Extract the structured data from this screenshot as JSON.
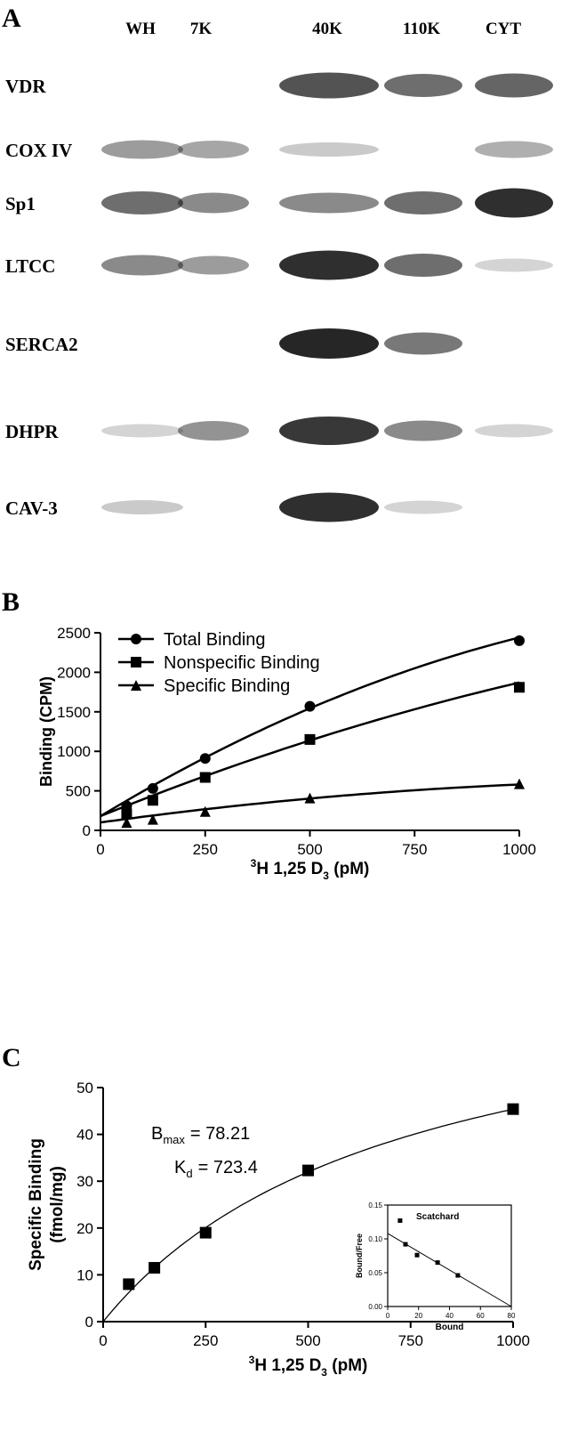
{
  "panel_labels": {
    "a": "A",
    "b": "B",
    "c": "C"
  },
  "blot": {
    "columns": [
      "WH",
      "7K",
      "40K",
      "110K",
      "CYT"
    ],
    "rows": [
      {
        "label": "VDR",
        "intensity": [
          0.0,
          0.0,
          0.75,
          0.6,
          0.65
        ]
      },
      {
        "label": "COX IV",
        "intensity": [
          0.35,
          0.3,
          0.1,
          0.0,
          0.25
        ]
      },
      {
        "label": "Sp1",
        "intensity": [
          0.6,
          0.45,
          0.45,
          0.6,
          0.95
        ]
      },
      {
        "label": "LTCC",
        "intensity": [
          0.45,
          0.35,
          0.95,
          0.6,
          0.05
        ]
      },
      {
        "label": "SERCA2",
        "intensity": [
          0.0,
          0.0,
          1.0,
          0.55,
          0.0
        ]
      },
      {
        "label": "DHPR",
        "intensity": [
          0.05,
          0.4,
          0.9,
          0.45,
          0.05
        ]
      },
      {
        "label": "CAV-3",
        "intensity": [
          0.1,
          0.0,
          0.95,
          0.05,
          0.0
        ]
      }
    ],
    "band_color": "#1a1a1a"
  },
  "chart_data": [
    {
      "type": "scatter",
      "title": "",
      "xlabel_sup": "3",
      "xlabel_main": "H 1,25 D",
      "xlabel_sub": "3",
      "xlabel_tail": " (pM)",
      "ylabel": "Binding (CPM)",
      "xlim": [
        0,
        1000
      ],
      "ylim": [
        0,
        2500
      ],
      "xticks": [
        0,
        250,
        500,
        750,
        1000
      ],
      "yticks": [
        0,
        500,
        1000,
        1500,
        2000,
        2500
      ],
      "legend_placement": "top-left",
      "series": [
        {
          "name": "Total Binding",
          "marker": "circle",
          "x": [
            62.5,
            125,
            250,
            500,
            1000
          ],
          "y": [
            310,
            530,
            910,
            1570,
            2400
          ],
          "fit": [
            180,
            2440
          ]
        },
        {
          "name": "Nonspecific Binding",
          "marker": "square",
          "x": [
            62.5,
            125,
            250,
            500,
            1000
          ],
          "y": [
            210,
            380,
            670,
            1150,
            1810
          ],
          "fit": [
            180,
            1870
          ]
        },
        {
          "name": "Specific Binding",
          "marker": "triangle",
          "x": [
            62.5,
            125,
            250,
            500,
            1000
          ],
          "y": [
            100,
            140,
            240,
            410,
            590
          ],
          "fit": [
            100,
            580
          ]
        }
      ]
    },
    {
      "type": "scatter",
      "title": "",
      "xlabel_sup": "3",
      "xlabel_main": "H 1,25 D",
      "xlabel_sub": "3",
      "xlabel_tail": " (pM)",
      "ylabel_line1": "Specific Binding",
      "ylabel_line2": "(fmol/mg)",
      "xlim": [
        0,
        1000
      ],
      "ylim": [
        0,
        50
      ],
      "xticks": [
        0,
        250,
        500,
        750,
        1000
      ],
      "yticks": [
        0,
        10,
        20,
        30,
        40,
        50
      ],
      "bmax_label": "B",
      "bmax_sub": "max",
      "bmax_value": "=  78.21",
      "kd_label": "K",
      "kd_sub": "d",
      "kd_value": "=  723.4",
      "bmax": 78.21,
      "kd": 723.4,
      "series": [
        {
          "name": "",
          "marker": "square",
          "x": [
            62.5,
            125,
            250,
            500,
            1000
          ],
          "y": [
            8,
            11.5,
            19,
            32.3,
            45.4
          ]
        }
      ]
    },
    {
      "type": "scatter",
      "title": "Scatchard",
      "xlabel": "Bound",
      "ylabel": "Bound/Free",
      "xlim": [
        0,
        80
      ],
      "ylim": [
        0,
        0.15
      ],
      "xticks": [
        0,
        20,
        40,
        60,
        80
      ],
      "yticks": [
        "0.00",
        "0.05",
        "0.10",
        "0.15"
      ],
      "series": [
        {
          "name": "",
          "marker": "square",
          "x": [
            8,
            11.5,
            19,
            32.3,
            45.4
          ],
          "y": [
            0.127,
            0.092,
            0.076,
            0.065,
            0.046
          ]
        }
      ],
      "line": {
        "x": [
          0,
          80
        ],
        "y": [
          0.108,
          0.0
        ]
      }
    }
  ]
}
